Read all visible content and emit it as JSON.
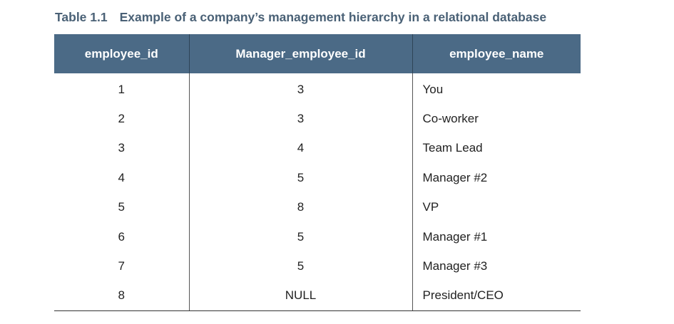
{
  "caption": {
    "number": "Table 1.1",
    "title": "Example of a company’s management hierarchy in a relational database"
  },
  "table": {
    "headers": [
      "employee_id",
      "Manager_employee_id",
      "employee_name"
    ],
    "rows": [
      [
        "1",
        "3",
        "You"
      ],
      [
        "2",
        "3",
        "Co-worker"
      ],
      [
        "3",
        "4",
        "Team Lead"
      ],
      [
        "4",
        "5",
        "Manager #2"
      ],
      [
        "5",
        "8",
        "VP"
      ],
      [
        "6",
        "5",
        "Manager #1"
      ],
      [
        "7",
        "5",
        "Manager #3"
      ],
      [
        "8",
        "NULL",
        "President/CEO"
      ]
    ]
  },
  "colors": {
    "caption": "#4a6176",
    "header_background": "#4b6a86",
    "header_text": "#ffffff"
  }
}
